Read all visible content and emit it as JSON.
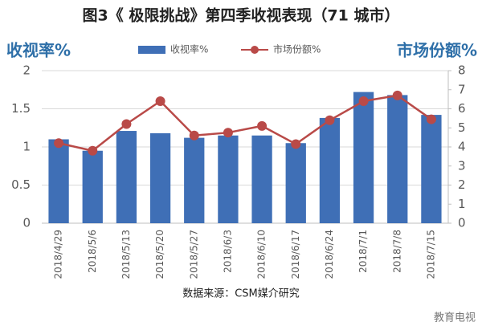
{
  "chart_data": {
    "type": "bar-line",
    "title": "图3《 极限挑战》第四季收视表现（71 城市）",
    "y_label": "收视率%",
    "y2_label": "市场份额%",
    "source": "数据来源：CSM媒介研究",
    "watermark": "教育电视",
    "categories": [
      "2018/4/29",
      "2018/5/6",
      "2018/5/13",
      "2018/5/20",
      "2018/5/27",
      "2018/6/3",
      "2018/6/10",
      "2018/6/17",
      "2018/6/24",
      "2018/7/1",
      "2018/7/8",
      "2018/7/15"
    ],
    "series": [
      {
        "name": "收视率%",
        "type": "bar",
        "color": "#3f6fb6",
        "values": [
          1.1,
          0.95,
          1.21,
          1.18,
          1.12,
          1.15,
          1.15,
          1.05,
          1.38,
          1.72,
          1.68,
          1.42
        ]
      },
      {
        "name": "市场份额%",
        "type": "line",
        "axis": "y2",
        "color": "#b94a48",
        "values": [
          4.2,
          3.8,
          5.2,
          6.4,
          4.6,
          4.75,
          5.1,
          4.15,
          5.4,
          6.4,
          6.7,
          5.45
        ]
      }
    ],
    "ylim": [
      0,
      2
    ],
    "yticks": [
      0,
      0.5,
      1,
      1.5,
      2
    ],
    "y2lim": [
      0,
      8
    ],
    "y2ticks": [
      0,
      1,
      2,
      3,
      4,
      5,
      6,
      7,
      8
    ],
    "grid": true,
    "legend": "top"
  }
}
